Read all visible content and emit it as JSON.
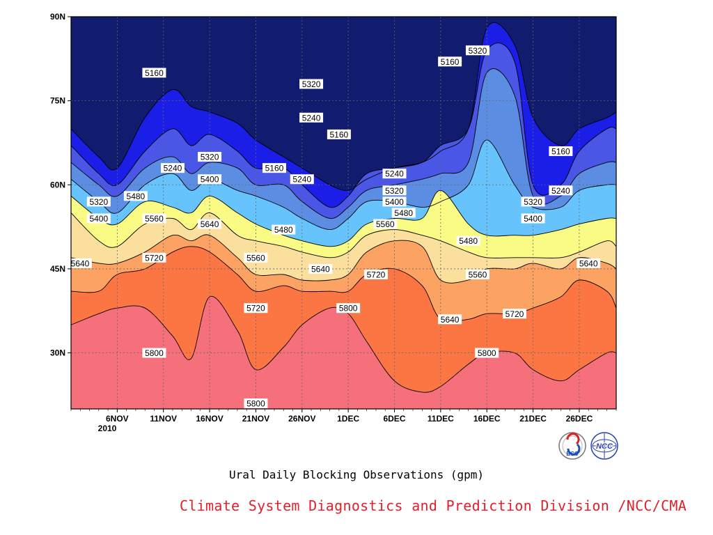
{
  "chart_data": {
    "type": "area",
    "title": "Ural Daily Blocking Observations (gpm)",
    "x_ticks": [
      "6NOV",
      "11NOV",
      "16NOV",
      "21NOV",
      "26NOV",
      "1DEC",
      "6DEC",
      "11DEC",
      "16DEC",
      "21DEC",
      "26DEC"
    ],
    "x_year_label": "2010",
    "y_ticks": [
      "30N",
      "45N",
      "60N",
      "75N",
      "90N"
    ],
    "xlim": [
      "2010-11-01",
      "2010-12-30"
    ],
    "ylim": [
      20,
      90
    ],
    "grid": true,
    "levels": [
      5160,
      5240,
      5320,
      5400,
      5480,
      5560,
      5640,
      5720,
      5800
    ],
    "x": [
      "2010-11-01",
      "2010-11-04",
      "2010-11-06",
      "2010-11-09",
      "2010-11-12",
      "2010-11-14",
      "2010-11-16",
      "2010-11-19",
      "2010-11-21",
      "2010-11-24",
      "2010-11-26",
      "2010-11-29",
      "2010-12-01",
      "2010-12-03",
      "2010-12-06",
      "2010-12-09",
      "2010-12-11",
      "2010-12-14",
      "2010-12-16",
      "2010-12-19",
      "2010-12-21",
      "2010-12-24",
      "2010-12-26",
      "2010-12-29",
      "2010-12-30"
    ],
    "series": [
      {
        "name": "5160",
        "values": [
          70,
          65,
          63,
          72,
          77,
          74,
          73,
          71,
          68,
          65,
          63,
          60,
          59,
          61,
          63,
          64,
          66,
          70,
          88,
          85,
          72,
          67,
          70,
          72,
          73
        ]
      },
      {
        "name": "5240",
        "values": [
          67,
          62,
          60,
          66,
          70,
          67,
          69,
          66,
          63,
          63,
          60,
          56,
          58,
          62,
          63,
          64,
          67,
          70,
          84,
          82,
          60,
          60,
          66,
          70,
          70
        ]
      },
      {
        "name": "5320",
        "values": [
          64,
          60,
          58,
          63,
          65,
          62,
          64,
          63,
          60,
          60,
          57,
          54,
          56,
          59,
          60,
          61,
          62,
          64,
          80,
          76,
          58,
          58,
          62,
          64,
          64
        ]
      },
      {
        "name": "5400",
        "values": [
          61,
          57,
          55,
          60,
          62,
          59,
          61,
          59,
          58,
          56,
          54,
          52,
          54,
          57,
          57,
          56,
          57,
          60,
          68,
          60,
          56,
          56,
          59,
          60,
          60
        ]
      },
      {
        "name": "5480",
        "values": [
          58,
          54,
          53,
          57,
          56,
          55,
          58,
          55,
          53,
          51,
          50,
          49,
          50,
          53,
          54,
          54,
          59,
          53,
          51,
          51,
          51,
          52,
          53,
          54,
          54
        ]
      },
      {
        "name": "5560",
        "values": [
          55,
          50,
          49,
          53,
          54,
          52,
          55,
          51,
          50,
          49,
          48,
          47,
          48,
          51,
          52,
          51,
          50,
          48,
          47,
          47,
          47,
          47,
          48,
          50,
          49
        ]
      },
      {
        "name": "5640",
        "values": [
          47,
          46,
          46,
          48,
          51,
          50,
          51,
          47,
          44,
          44,
          43,
          43,
          44,
          48,
          50,
          49,
          43,
          43,
          45,
          45,
          46,
          45,
          47,
          46,
          45
        ]
      },
      {
        "name": "5720",
        "values": [
          41,
          41,
          44,
          45,
          48,
          49,
          48,
          44,
          41,
          42,
          41,
          41,
          41,
          44,
          45,
          42,
          36,
          36,
          37,
          37,
          38,
          40,
          43,
          41,
          38
        ]
      },
      {
        "name": "5800",
        "values": [
          35,
          37,
          38,
          38,
          33,
          29,
          40,
          34,
          27,
          31,
          35,
          38,
          37,
          32,
          25,
          23,
          24,
          28,
          30,
          30,
          27,
          25,
          27,
          30,
          30
        ]
      }
    ],
    "fill_colors": [
      "#111c6f",
      "#1a1ee6",
      "#4a56e6",
      "#5b8ee3",
      "#66c3fb",
      "#fafb84",
      "#fbdf9c",
      "#fca363",
      "#fc7644",
      "#f5707a"
    ],
    "contour_labels": [
      {
        "level": 5160,
        "x": "2010-11-10",
        "y": 80
      },
      {
        "level": 5240,
        "x": "2010-11-12",
        "y": 63
      },
      {
        "level": 5320,
        "x": "2010-11-16",
        "y": 65
      },
      {
        "level": 5400,
        "x": "2010-11-16",
        "y": 61
      },
      {
        "level": 5480,
        "x": "2010-11-08",
        "y": 58
      },
      {
        "level": 5560,
        "x": "2010-11-10",
        "y": 54
      },
      {
        "level": 5640,
        "x": "2010-11-16",
        "y": 53
      },
      {
        "level": 5720,
        "x": "2010-11-10",
        "y": 47
      },
      {
        "level": 5800,
        "x": "2010-11-10",
        "y": 30
      },
      {
        "level": 5320,
        "x": "2010-11-04",
        "y": 57
      },
      {
        "level": 5400,
        "x": "2010-11-04",
        "y": 54
      },
      {
        "level": 5640,
        "x": "2010-11-01",
        "y": 46
      },
      {
        "level": 5160,
        "x": "2010-11-23",
        "y": 63
      },
      {
        "level": 5240,
        "x": "2010-11-26",
        "y": 61
      },
      {
        "level": 5320,
        "x": "2010-11-27",
        "y": 78
      },
      {
        "level": 5240,
        "x": "2010-11-27",
        "y": 72
      },
      {
        "level": 5480,
        "x": "2010-11-24",
        "y": 52
      },
      {
        "level": 5560,
        "x": "2010-11-21",
        "y": 47
      },
      {
        "level": 5720,
        "x": "2010-11-21",
        "y": 38
      },
      {
        "level": 5800,
        "x": "2010-11-21",
        "y": 21
      },
      {
        "level": 5160,
        "x": "2010-11-30",
        "y": 69
      },
      {
        "level": 5640,
        "x": "2010-11-28",
        "y": 45
      },
      {
        "level": 5800,
        "x": "2010-12-01",
        "y": 38
      },
      {
        "level": 5240,
        "x": "2010-12-06",
        "y": 62
      },
      {
        "level": 5320,
        "x": "2010-12-06",
        "y": 59
      },
      {
        "level": 5400,
        "x": "2010-12-06",
        "y": 57
      },
      {
        "level": 5480,
        "x": "2010-12-07",
        "y": 55
      },
      {
        "level": 5560,
        "x": "2010-12-05",
        "y": 53
      },
      {
        "level": 5720,
        "x": "2010-12-04",
        "y": 44
      },
      {
        "level": 5160,
        "x": "2010-12-12",
        "y": 82
      },
      {
        "level": 5320,
        "x": "2010-12-15",
        "y": 84
      },
      {
        "level": 5480,
        "x": "2010-12-14",
        "y": 50
      },
      {
        "level": 5560,
        "x": "2010-12-15",
        "y": 44
      },
      {
        "level": 5640,
        "x": "2010-12-12",
        "y": 36
      },
      {
        "level": 5720,
        "x": "2010-12-19",
        "y": 37
      },
      {
        "level": 5800,
        "x": "2010-12-16",
        "y": 30
      },
      {
        "level": 5160,
        "x": "2010-12-24",
        "y": 66
      },
      {
        "level": 5240,
        "x": "2010-12-24",
        "y": 59
      },
      {
        "level": 5320,
        "x": "2010-12-21",
        "y": 57
      },
      {
        "level": 5400,
        "x": "2010-12-21",
        "y": 54
      },
      {
        "level": 5640,
        "x": "2010-12-27",
        "y": 46
      }
    ]
  },
  "credit": "Climate System Diagnostics and Prediction Division /NCC/CMA",
  "logos": [
    {
      "name": "bcc-logo-icon",
      "text": "BCC"
    },
    {
      "name": "ncc-logo-icon",
      "text": "NCC"
    }
  ]
}
